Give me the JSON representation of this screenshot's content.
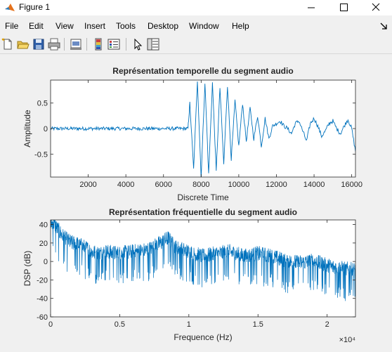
{
  "window": {
    "title": "Figure 1"
  },
  "menu": {
    "items": [
      "File",
      "Edit",
      "View",
      "Insert",
      "Tools",
      "Desktop",
      "Window",
      "Help"
    ]
  },
  "toolbar": {
    "buttons": [
      "new-figure-icon",
      "open-file-icon",
      "save-icon",
      "print-icon",
      "print-preview-icon",
      "insert-colorbar-icon",
      "insert-legend-icon",
      "edit-plot-icon",
      "property-inspector-icon"
    ]
  },
  "chart_data": [
    {
      "type": "line",
      "title": "Représentation temporelle du segment audio",
      "xlabel": "Discrete Time",
      "ylabel": "Amplitude",
      "xlim": [
        0,
        16200
      ],
      "ylim": [
        -0.95,
        0.95
      ],
      "xticks": [
        2000,
        4000,
        6000,
        8000,
        10000,
        12000,
        14000,
        16000
      ],
      "yticks": [
        -0.5,
        0,
        0.5
      ],
      "ytick_labels": [
        "-0.5",
        "0",
        "0.5"
      ],
      "color": "#0072bd",
      "series": [
        {
          "x": [
            0,
            7300,
            7400,
            7600,
            7800,
            8000,
            8200,
            8400,
            8600,
            8800,
            9000,
            9200,
            9400,
            9600,
            9800,
            10000,
            10200,
            10400,
            10600,
            10800,
            11000,
            11200,
            11400,
            11600,
            11800,
            12000,
            12200,
            12400,
            12600,
            12800,
            13000,
            13200,
            13400,
            13600,
            13800,
            14000,
            14200,
            14400,
            14600,
            14800,
            15000,
            15200,
            15400,
            15600,
            15800,
            16000,
            16200
          ],
          "y": [
            0.0,
            0.0,
            0.5,
            -0.8,
            0.95,
            -0.95,
            0.9,
            -0.9,
            0.9,
            -0.85,
            0.8,
            -0.7,
            0.85,
            -0.6,
            0.55,
            -0.35,
            0.5,
            -0.25,
            0.4,
            -0.2,
            0.25,
            -0.35,
            0.2,
            -0.2,
            0.05,
            0.1,
            0.15,
            0.05,
            0.0,
            -0.1,
            0.1,
            0.15,
            -0.05,
            -0.25,
            0.1,
            0.2,
            0.05,
            -0.15,
            -0.05,
            0.1,
            0.15,
            0.0,
            -0.1,
            0.05,
            0.18,
            0.0,
            -0.45
          ]
        }
      ]
    },
    {
      "type": "line",
      "title": "Représentation fréquentielle du segment audio",
      "xlabel": "Frequence (Hz)",
      "ylabel": "DSP (dB)",
      "xlim": [
        0,
        22050
      ],
      "ylim": [
        -60,
        45
      ],
      "xticks": [
        0,
        5000,
        10000,
        15000,
        20000
      ],
      "xtick_labels": [
        "0",
        "0.5",
        "1",
        "1.5",
        "2"
      ],
      "x_exponent": "×10⁴",
      "yticks": [
        -60,
        -40,
        -20,
        0,
        20,
        40
      ],
      "ytick_labels": [
        "-60",
        "-40",
        "-20",
        "0",
        "20",
        "40"
      ],
      "color": "#0072bd",
      "series": [
        {
          "x": [
            0,
            200,
            500,
            1000,
            1500,
            2000,
            2500,
            3000,
            3500,
            4000,
            5000,
            6000,
            7000,
            8000,
            8500,
            9000,
            10000,
            11000,
            12000,
            13000,
            14000,
            15000,
            16000,
            17000,
            18000,
            19000,
            20000,
            21000,
            22050
          ],
          "y": [
            40,
            42,
            35,
            25,
            20,
            18,
            15,
            10,
            8,
            10,
            8,
            10,
            12,
            20,
            25,
            15,
            10,
            5,
            8,
            10,
            5,
            8,
            5,
            0,
            -2,
            0,
            -5,
            -8,
            -10
          ]
        }
      ]
    }
  ]
}
